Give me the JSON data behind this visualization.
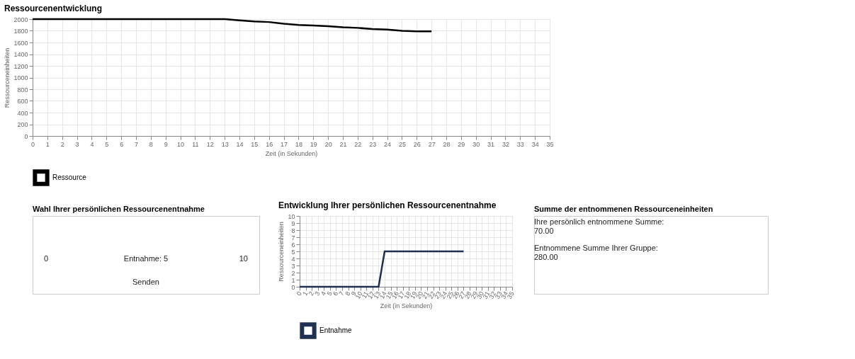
{
  "chart_data": [
    {
      "type": "line",
      "title": "Ressourcenentwicklung",
      "xlabel": "Zeit (in Sekunden)",
      "ylabel": "Ressourceneinheiten",
      "series": [
        {
          "name": "Ressource",
          "color": "#000000",
          "x": [
            0,
            13,
            14,
            15,
            16,
            17,
            18,
            19,
            20,
            21,
            22,
            23,
            24,
            25,
            26,
            27
          ],
          "values": [
            2000,
            2000,
            1980,
            1960,
            1950,
            1920,
            1900,
            1890,
            1880,
            1860,
            1850,
            1830,
            1820,
            1800,
            1790,
            1790
          ]
        }
      ],
      "xlim": [
        0,
        35
      ],
      "xticks": [
        0,
        1,
        2,
        3,
        4,
        5,
        6,
        7,
        8,
        9,
        10,
        11,
        12,
        13,
        14,
        15,
        16,
        17,
        18,
        19,
        20,
        21,
        22,
        23,
        24,
        25,
        26,
        27,
        28,
        29,
        30,
        31,
        32,
        33,
        34,
        35
      ],
      "ylim": [
        0,
        2000
      ],
      "yticks": [
        0,
        200,
        400,
        600,
        800,
        1000,
        1200,
        1400,
        1600,
        1800,
        2000
      ],
      "grid": true,
      "legend": "bottom",
      "marker": "none"
    },
    {
      "type": "other",
      "title": "Wahl Ihrer persönlichen Ressourcenentnahme",
      "annotations": [
        "0",
        "Entnahme: 5",
        "10",
        "Senden"
      ]
    },
    {
      "type": "line",
      "title": "Entwicklung Ihrer persönlichen Ressourcenentnahme",
      "xlabel": "Zeit (in Sekunden)",
      "ylabel": "Ressourceneinheiten",
      "series": [
        {
          "name": "Entnahme",
          "color": "#1f3050",
          "x": [
            0,
            13,
            14,
            27
          ],
          "values": [
            0,
            0,
            5,
            5
          ]
        }
      ],
      "xlim": [
        0,
        35
      ],
      "xticks": [
        0,
        1,
        2,
        3,
        4,
        5,
        6,
        7,
        8,
        9,
        10,
        11,
        12,
        13,
        14,
        15,
        16,
        17,
        18,
        19,
        20,
        21,
        22,
        23,
        24,
        25,
        26,
        27,
        28,
        29,
        30,
        31,
        32,
        33,
        34,
        35
      ],
      "ylim": [
        0,
        10
      ],
      "yticks": [
        0,
        1,
        2,
        3,
        4,
        5,
        6,
        7,
        8,
        9,
        10
      ],
      "grid": true,
      "legend": "bottom",
      "marker": "none"
    },
    {
      "type": "other",
      "title": "Summe der entnommenen Ressourceneinheiten",
      "annotations": [
        "Ihre persönlich entnommene Summe:",
        "70.00",
        "Entnommene Summe Ihrer Gruppe:",
        "280.00"
      ]
    }
  ]
}
